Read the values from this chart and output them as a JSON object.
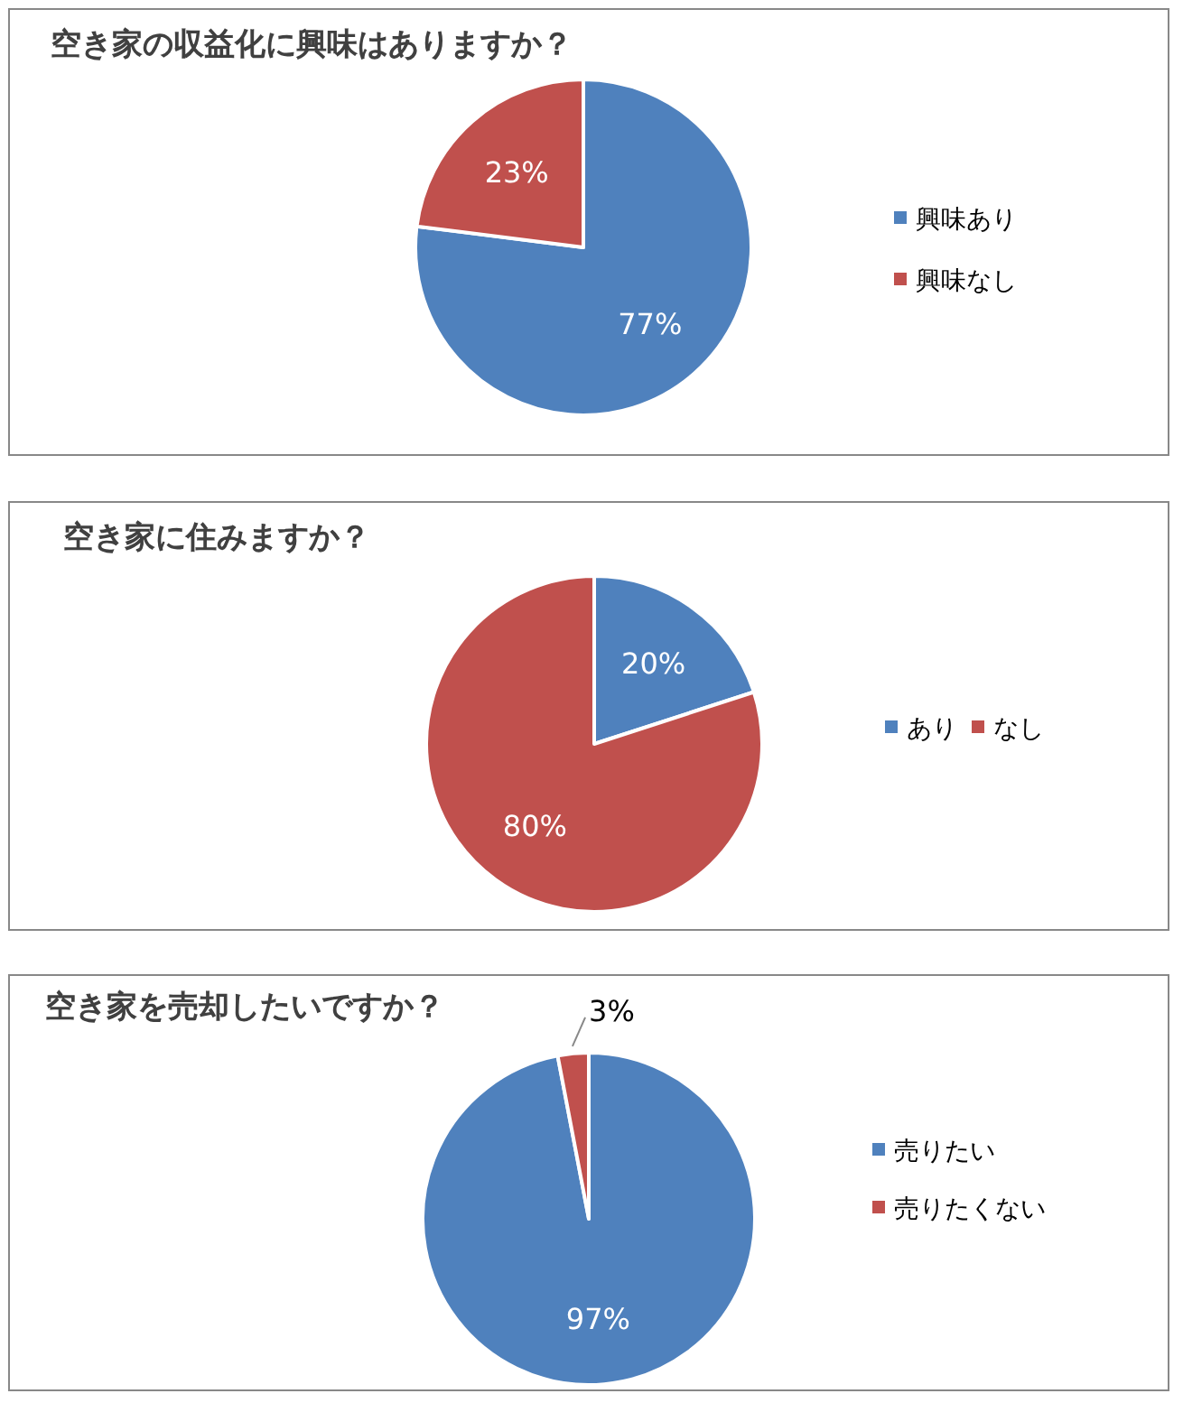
{
  "chart_data": [
    {
      "type": "pie",
      "title": "空き家の収益化に興味はありますか？",
      "categories": [
        "興味あり",
        "興味なし"
      ],
      "values": [
        77,
        23
      ],
      "value_labels": [
        "77%",
        "23%"
      ],
      "colors": [
        "#4f81bd",
        "#c0504d"
      ],
      "legend": "right"
    },
    {
      "type": "pie",
      "title": "空き家に住みますか？",
      "categories": [
        "あり",
        "なし"
      ],
      "values": [
        20,
        80
      ],
      "value_labels": [
        "20%",
        "80%"
      ],
      "colors": [
        "#4f81bd",
        "#c0504d"
      ],
      "legend": "right"
    },
    {
      "type": "pie",
      "title": "空き家を売却したいですか？",
      "categories": [
        "売りたい",
        "売りたくない"
      ],
      "values": [
        97,
        3
      ],
      "value_labels": [
        "97%",
        "3%"
      ],
      "colors": [
        "#4f81bd",
        "#c0504d"
      ],
      "legend": "right"
    }
  ]
}
